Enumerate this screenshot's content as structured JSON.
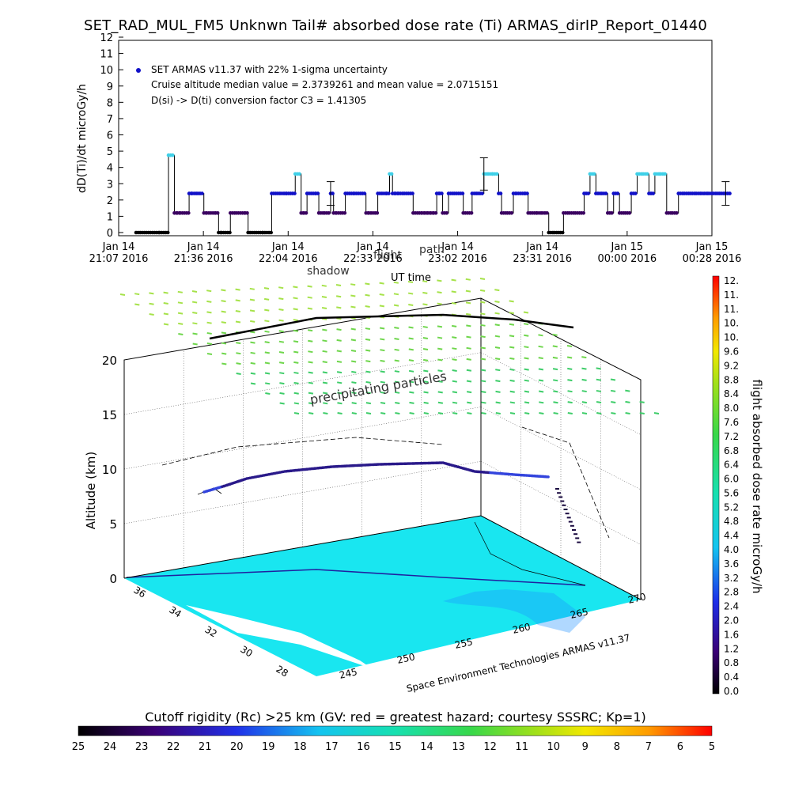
{
  "title": "SET_RAD_MUL_FM5 Unknwn Tail#  absorbed dose rate (Ti) ARMAS_dirIP_Report_01440",
  "chart_data": [
    {
      "type": "line",
      "ylabel": "dD(Ti)/dt microGy/h",
      "xlabel": "UT time",
      "ylim": [
        0,
        12
      ],
      "yticks": [
        "0",
        "1",
        "2",
        "3",
        "4",
        "5",
        "6",
        "7",
        "8",
        "9",
        "10",
        "11",
        "12"
      ],
      "xticks": [
        {
          "date": "Jan 14",
          "time": "21:07 2016"
        },
        {
          "date": "Jan 14",
          "time": "21:36 2016"
        },
        {
          "date": "Jan 14",
          "time": "22:04 2016"
        },
        {
          "date": "Jan 14",
          "time": "22:33 2016"
        },
        {
          "date": "Jan 14",
          "time": "23:02 2016"
        },
        {
          "date": "Jan 14",
          "time": "23:31 2016"
        },
        {
          "date": "Jan 15",
          "time": "00:00 2016"
        },
        {
          "date": "Jan 15",
          "time": "00:28 2016"
        }
      ],
      "legend": [
        "SET ARMAS v11.37 with 22% 1-sigma uncertainty"
      ],
      "annotations": [
        "Cruise altitude median value = 2.3739261 and mean value = 2.0715151",
        "D(si) -> D(ti) conversion factor C3 = 1.41305"
      ],
      "series": [
        {
          "name": "SET ARMAS v11.37 with 22% 1-sigma uncertainty",
          "x_minutes": [
            0,
            8,
            11,
            13,
            14,
            15,
            18,
            19,
            21,
            23,
            24,
            27,
            28,
            29,
            32,
            34,
            37,
            38,
            43,
            46,
            51,
            54,
            56,
            57,
            58,
            61,
            62,
            64,
            66,
            67,
            68,
            71,
            74,
            78,
            79,
            82,
            85,
            86,
            87,
            88,
            89,
            91,
            94,
            97,
            98,
            99,
            100,
            101,
            102,
            103,
            104,
            106,
            108,
            111,
            114,
            116,
            118,
            121,
            123,
            124,
            126,
            128,
            129,
            132,
            133,
            136,
            138,
            140,
            142,
            144,
            145,
            147,
            149,
            152,
            154,
            156,
            158,
            160,
            162,
            164,
            166,
            168,
            170,
            172,
            174,
            176,
            178,
            180,
            182,
            184,
            186,
            188,
            190,
            192,
            194,
            196,
            198,
            200
          ],
          "values": [
            0,
            0,
            4.75,
            1.2,
            1.2,
            1.2,
            2.4,
            2.4,
            2.4,
            1.2,
            1.2,
            1.2,
            0,
            0,
            1.2,
            1.2,
            1.2,
            0,
            0,
            2.4,
            2.4,
            3.6,
            1.2,
            1.2,
            2.4,
            2.4,
            1.2,
            1.2,
            2.4,
            1.2,
            1.2,
            2.4,
            2.4,
            1.2,
            1.2,
            2.4,
            2.4,
            3.6,
            2.4,
            2.4,
            2.4,
            2.4,
            1.2,
            1.2,
            1.2,
            1.2,
            1.2,
            1.2,
            2.4,
            2.4,
            1.2,
            2.4,
            2.4,
            1.2,
            2.4,
            2.4,
            3.6,
            3.6,
            2.4,
            1.2,
            1.2,
            2.4,
            2.4,
            2.4,
            1.2,
            1.2,
            1.2,
            0,
            0,
            0,
            1.2,
            1.2,
            1.2,
            2.4,
            3.6,
            2.4,
            2.4,
            1.2,
            2.4,
            1.2,
            1.2,
            2.4,
            3.6,
            3.6,
            2.4,
            3.6,
            3.6,
            1.2,
            1.2,
            2.4,
            2.4,
            2.4,
            2.4,
            2.4,
            2.4,
            2.4,
            2.4,
            2.4
          ],
          "error_bars_minutes": [
            66,
            118,
            200
          ]
        }
      ]
    },
    {
      "type": "scatter",
      "zlabel": "Altitude (km)",
      "zticks": [
        "0",
        "5",
        "10",
        "15",
        "20"
      ],
      "lat_ticks": [
        "36",
        "34",
        "32",
        "30",
        "28"
      ],
      "lon_ticks": [
        "245",
        "250",
        "255",
        "260",
        "265",
        "270"
      ],
      "floating_labels": [
        "precipitating particles",
        "shadow",
        "flight",
        "path"
      ],
      "credit": "Space Environment Technologies ARMAS v11.37",
      "flight_altitude_km": [
        6.5,
        8.3,
        9.5,
        10.0,
        10.0,
        10.0,
        9.6,
        9.3,
        6.0,
        1.5
      ]
    },
    {
      "type": "heatmap",
      "title": "flight absorbed dose rate microGy/h",
      "ticks": [
        "12.",
        "11.",
        "11.",
        "10.",
        "10.",
        "9.6",
        "9.2",
        "8.8",
        "8.4",
        "8.0",
        "7.6",
        "7.2",
        "6.8",
        "6.4",
        "6.0",
        "5.6",
        "5.2",
        "4.8",
        "4.4",
        "4.0",
        "3.6",
        "3.2",
        "2.8",
        "2.4",
        "2.0",
        "1.6",
        "1.2",
        "0.8",
        "0.4",
        "0.0"
      ],
      "range": [
        0,
        12
      ]
    },
    {
      "type": "heatmap",
      "title": "Cutoff rigidity (Rc) >25 km (GV: red = greatest hazard; courtesy SSSRC; Kp=1)",
      "ticks": [
        "25",
        "24",
        "23",
        "22",
        "21",
        "20",
        "19",
        "18",
        "17",
        "16",
        "15",
        "14",
        "13",
        "12",
        "11",
        "10",
        "9",
        "8",
        "7",
        "6",
        "5"
      ],
      "range": [
        25,
        5
      ]
    }
  ],
  "colors": {
    "line": "#000000",
    "dose_point": "#1010c8",
    "dose_low_point": "#3a0060",
    "high_point": "#3fd0e8",
    "map_fill": "#19e6f0",
    "map_region": "#1e90ff",
    "ocean": "#ffffff",
    "particles": "#4ccb5a"
  }
}
